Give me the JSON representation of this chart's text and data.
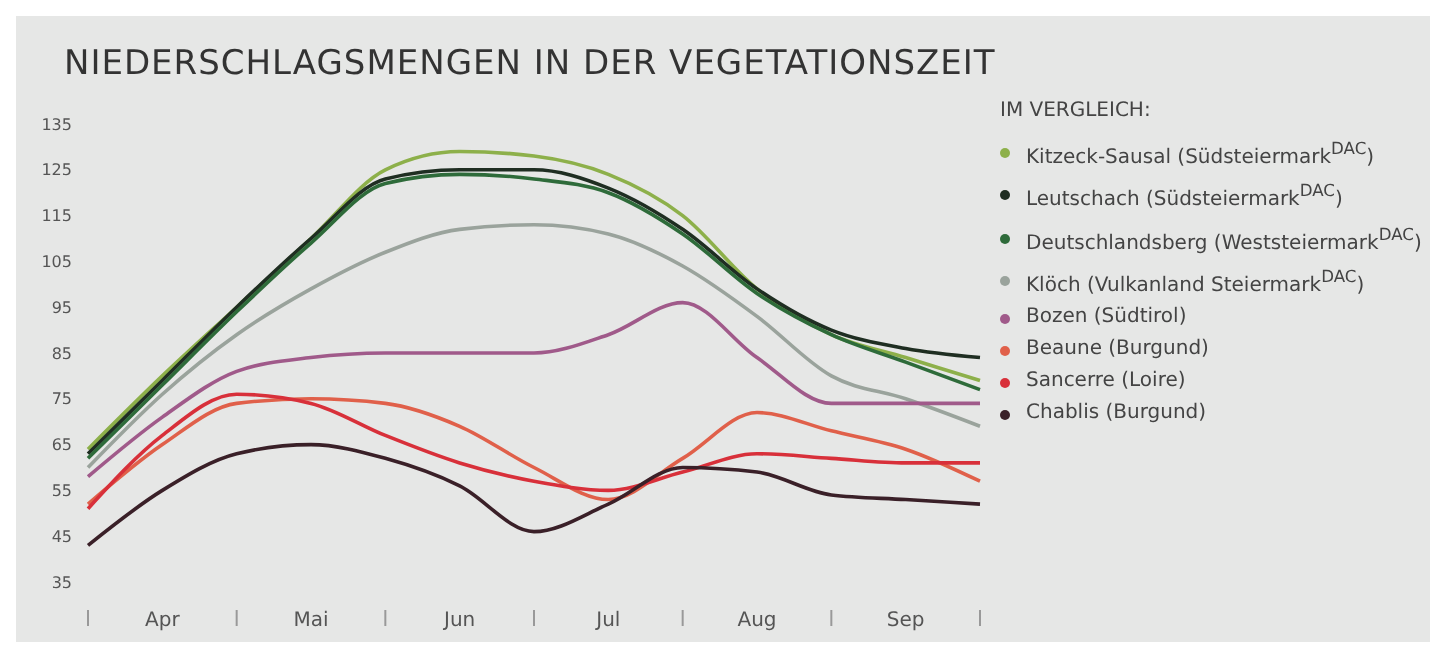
{
  "chart_data": {
    "type": "line",
    "title": "NIEDERSCHLAGSMENGEN IN DER VEGETATIONSZEIT",
    "legend_title": "IM VERGLEICH:",
    "categories": [
      null,
      "Apr",
      null,
      "Mai",
      null,
      "Jun",
      null,
      "Jul",
      null,
      "Aug",
      null,
      "Sep",
      null
    ],
    "ylim": [
      35,
      135
    ],
    "yticks": [
      35,
      45,
      55,
      65,
      75,
      85,
      95,
      105,
      115,
      125,
      135
    ],
    "grid": false,
    "legend": "right",
    "marker": "none",
    "line_style": "solid",
    "series": [
      {
        "name": "Kitzeck-Sausal (Südsteiermark$^{DAC}$)",
        "color": "#8db04a",
        "values": [
          64,
          80,
          95,
          110,
          125,
          129,
          128,
          124,
          115,
          99,
          89,
          84,
          79
        ]
      },
      {
        "name": "Leutschach (Südsteiermark$^{DAC}$)",
        "color": "#1f2e22",
        "values": [
          63,
          79,
          95,
          110,
          123,
          125,
          125,
          121,
          112,
          99,
          90,
          86,
          84
        ]
      },
      {
        "name": "Deutschlandsberg (Weststeiermark$^{DAC}$)",
        "color": "#2e6b3a",
        "values": [
          62,
          78,
          94,
          109,
          122,
          124,
          123,
          120,
          111,
          98,
          89,
          83,
          77
        ]
      },
      {
        "name": "Klöch (Vulkanland Steiermark$^{DAC}$)",
        "color": "#9aa39c",
        "values": [
          60,
          76,
          89,
          99,
          107,
          112,
          113,
          111,
          104,
          93,
          80,
          75,
          69
        ]
      },
      {
        "name": "Bozen (Südtirol)",
        "color": "#a05a8a",
        "values": [
          58,
          71,
          81,
          84,
          85,
          85,
          85,
          89,
          96,
          84,
          74,
          74,
          74
        ]
      },
      {
        "name": "Beaune (Burgund)",
        "color": "#e0604a",
        "values": [
          52,
          65,
          74,
          75,
          74,
          69,
          60,
          53,
          62,
          72,
          68,
          64,
          57
        ]
      },
      {
        "name": "Sancerre (Loire)",
        "color": "#d8303a",
        "values": [
          51,
          67,
          76,
          74,
          67,
          61,
          57,
          55,
          59,
          63,
          62,
          61,
          61
        ]
      },
      {
        "name": "Chablis (Burgund)",
        "color": "#3a2028",
        "values": [
          43,
          55,
          63,
          65,
          62,
          56,
          46,
          52,
          60,
          59,
          54,
          53,
          52
        ]
      }
    ]
  }
}
